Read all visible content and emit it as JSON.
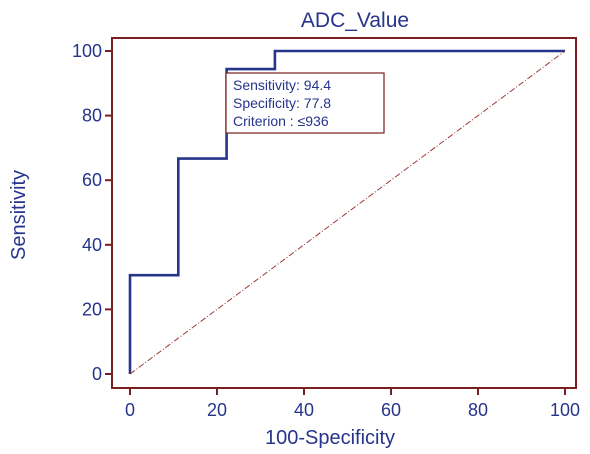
{
  "chart_data": {
    "type": "line",
    "title": "ADC_Value",
    "xlabel": "100-Specificity",
    "ylabel": "Sensitivity",
    "xlim": [
      0,
      100
    ],
    "ylim": [
      0,
      100
    ],
    "x_ticks": [
      0,
      20,
      40,
      60,
      80,
      100
    ],
    "y_ticks": [
      0,
      20,
      40,
      60,
      80,
      100
    ],
    "grid": false,
    "series": [
      {
        "style": "solid",
        "color": "#26348c",
        "x": [
          0,
          0,
          11.1,
          11.1,
          22.2,
          22.2,
          33.3,
          33.3,
          100
        ],
        "y": [
          0,
          30.6,
          30.6,
          66.7,
          66.7,
          94.4,
          94.4,
          100,
          100
        ]
      },
      {
        "style": "dash-dot",
        "color": "#9c3a3a",
        "x": [
          0,
          100
        ],
        "y": [
          0,
          100
        ]
      }
    ],
    "annotation": {
      "lines": [
        "Sensitivity: 94.4",
        "Specificity: 77.8",
        "Criterion : ≤936"
      ]
    },
    "colors": {
      "frame": "#7a1f1f",
      "text": "#26348c",
      "roc_line": "#26348c",
      "diagonal": "#9c3a3a"
    }
  }
}
